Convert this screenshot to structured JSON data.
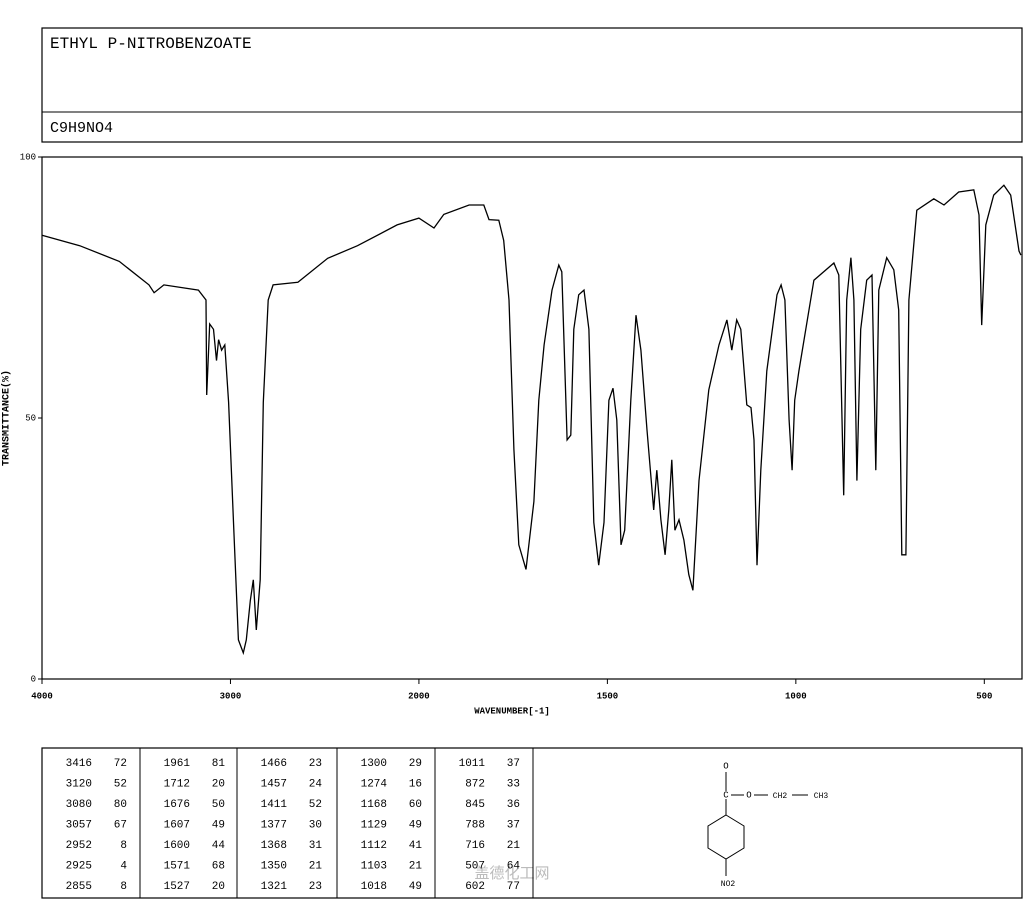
{
  "header": {
    "title": "ETHYL P-NITROBENZOATE",
    "formula": "C9H9NO4"
  },
  "chart_data": {
    "type": "line",
    "xlabel": "WAVENUMBER[-1]",
    "ylabel": "TRANSMITTANCE(%)",
    "xlim": [
      4000,
      400
    ],
    "x_scale_change_at": 2000,
    "ylim": [
      0,
      100
    ],
    "xticks": [
      4000,
      3000,
      2000,
      1500,
      1000,
      500
    ],
    "yticks": [
      0,
      50,
      100
    ],
    "color": "#000000",
    "x": [
      4000,
      3800,
      3590,
      3432,
      3405,
      3353,
      3170,
      3130,
      3126,
      3110,
      3090,
      3074,
      3063,
      3047,
      3030,
      3010,
      2984,
      2958,
      2932,
      2916,
      2895,
      2879,
      2863,
      2842,
      2826,
      2800,
      2774,
      2642,
      2484,
      2326,
      2116,
      2000,
      1960,
      1934,
      1867,
      1828,
      1814,
      1788,
      1775,
      1761,
      1748,
      1735,
      1716,
      1695,
      1682,
      1668,
      1647,
      1629,
      1621,
      1607,
      1597,
      1589,
      1576,
      1562,
      1549,
      1536,
      1523,
      1509,
      1496,
      1485,
      1475,
      1464,
      1454,
      1438,
      1424,
      1411,
      1395,
      1377,
      1369,
      1358,
      1347,
      1337,
      1329,
      1321,
      1310,
      1297,
      1284,
      1273,
      1257,
      1231,
      1204,
      1183,
      1170,
      1157,
      1146,
      1130,
      1119,
      1111,
      1103,
      1093,
      1077,
      1050,
      1039,
      1029,
      1018,
      1010,
      1003,
      992,
      952,
      899,
      886,
      873,
      865,
      854,
      846,
      838,
      828,
      812,
      798,
      788,
      780,
      759,
      740,
      727,
      719,
      708,
      700,
      679,
      634,
      607,
      568,
      528,
      514,
      507,
      496,
      475,
      448,
      430,
      408,
      403
    ],
    "values": [
      85,
      83,
      80,
      75.5,
      74,
      75.5,
      74.5,
      72.6,
      54.4,
      68,
      67,
      61,
      65,
      63,
      64,
      53,
      30,
      7.5,
      5,
      7.5,
      15,
      19,
      9.4,
      19,
      53,
      72.6,
      75.5,
      76,
      80.6,
      83,
      87,
      88.3,
      86.4,
      89,
      90.8,
      90.8,
      88,
      87.9,
      84,
      72.6,
      44,
      25.7,
      21,
      34,
      53.4,
      64,
      74.5,
      79.3,
      78,
      45.8,
      46.7,
      67,
      73.6,
      74.5,
      67,
      30,
      21.8,
      30,
      53.4,
      55.7,
      49.6,
      25.7,
      28.5,
      53.4,
      69.7,
      63,
      47.7,
      32.4,
      40,
      30.5,
      23.8,
      32.4,
      42,
      28.5,
      30.5,
      26.6,
      20,
      17,
      38,
      55.4,
      64,
      68.8,
      63,
      68.8,
      67,
      52.5,
      52,
      45.8,
      21.8,
      40,
      59,
      73.6,
      75.5,
      72.6,
      49.6,
      40,
      53.4,
      59,
      76.4,
      79.7,
      77.4,
      35.2,
      72.6,
      80.7,
      72.6,
      38,
      67,
      76.4,
      77.4,
      40,
      74.5,
      80.7,
      78.4,
      70.7,
      23.8,
      23.8,
      72.6,
      89.8,
      92,
      90.8,
      93.3,
      93.7,
      88.9,
      67.8,
      87,
      92.7,
      94.6,
      92.7,
      82,
      81.2
    ]
  },
  "peaks": [
    [
      [
        3416,
        72
      ],
      [
        3120,
        52
      ],
      [
        3080,
        80
      ],
      [
        3057,
        67
      ],
      [
        2952,
        8
      ],
      [
        2925,
        4
      ],
      [
        2855,
        8
      ]
    ],
    [
      [
        1961,
        81
      ],
      [
        1712,
        20
      ],
      [
        1676,
        50
      ],
      [
        1607,
        49
      ],
      [
        1600,
        44
      ],
      [
        1571,
        68
      ],
      [
        1527,
        20
      ]
    ],
    [
      [
        1466,
        23
      ],
      [
        1457,
        24
      ],
      [
        1411,
        52
      ],
      [
        1377,
        30
      ],
      [
        1368,
        31
      ],
      [
        1350,
        21
      ],
      [
        1321,
        23
      ]
    ],
    [
      [
        1300,
        29
      ],
      [
        1274,
        16
      ],
      [
        1168,
        60
      ],
      [
        1129,
        49
      ],
      [
        1112,
        41
      ],
      [
        1103,
        21
      ],
      [
        1018,
        49
      ]
    ],
    [
      [
        1011,
        37
      ],
      [
        872,
        33
      ],
      [
        845,
        36
      ],
      [
        788,
        37
      ],
      [
        716,
        21
      ],
      [
        507,
        64
      ],
      [
        602,
        77
      ]
    ]
  ],
  "structure": {
    "carbonyl_o": "O",
    "ester_o": "O",
    "ch2": "CH2",
    "ch3": "CH3",
    "nitro": "NO2"
  },
  "watermark": "盖德化工网"
}
